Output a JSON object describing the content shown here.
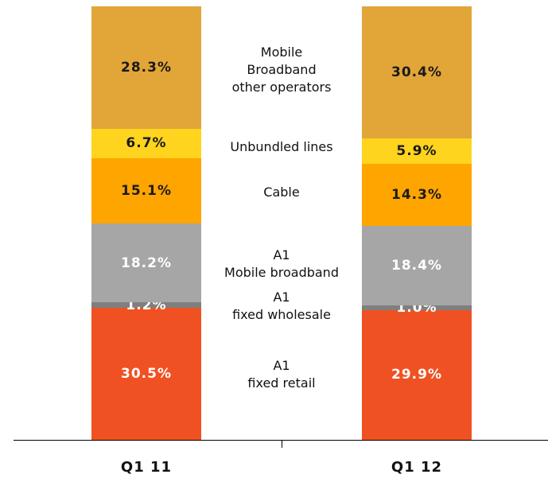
{
  "chart_data": {
    "type": "stacked_bar_100",
    "categories": [
      "Q1 11",
      "Q1 12"
    ],
    "series": [
      {
        "name": "A1\nfixed retail",
        "color": "#f05123",
        "label_color": "#ffffff",
        "values": [
          30.5,
          29.9
        ],
        "value_labels": [
          "30.5%",
          "29.9%"
        ]
      },
      {
        "name": "A1\nfixed wholesale",
        "color": "#7f7f7f",
        "label_color": "#ffffff",
        "values": [
          1.2,
          1.0
        ],
        "value_labels": [
          "1.2%",
          "1.0%"
        ]
      },
      {
        "name": "A1\nMobile broadband",
        "color": "#a6a6a6",
        "label_color": "#ffffff",
        "values": [
          18.2,
          18.4
        ],
        "value_labels": [
          "18.2%",
          "18.4%"
        ]
      },
      {
        "name": "Cable",
        "color": "#ffa500",
        "label_color": "#1a1a1a",
        "values": [
          15.1,
          14.3
        ],
        "value_labels": [
          "15.1%",
          "14.3%"
        ]
      },
      {
        "name": "Unbundled lines",
        "color": "#ffd41e",
        "label_color": "#1a1a1a",
        "values": [
          6.7,
          5.9
        ],
        "value_labels": [
          "6.7%",
          "5.9%"
        ]
      },
      {
        "name": "Mobile\nBroadband\nother operators",
        "color": "#e2a537",
        "label_color": "#1a1a1a",
        "values": [
          28.3,
          30.4
        ],
        "value_labels": [
          "28.3%",
          "30.4%"
        ]
      }
    ]
  }
}
